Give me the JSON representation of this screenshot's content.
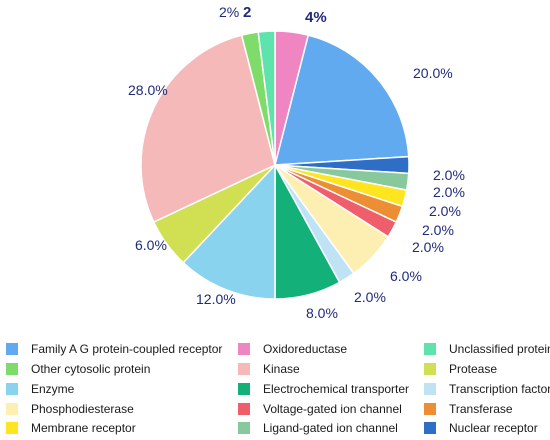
{
  "chart_data": {
    "type": "pie",
    "start": "12 o'clock, clockwise",
    "slices": [
      {
        "name": "Oxidoreductase",
        "value": 4,
        "label": "4%",
        "color": "#ef86c1",
        "bold": true
      },
      {
        "name": "Family A G protein-coupled receptor",
        "value": 20,
        "label": "20.0%",
        "color": "#62aaf0"
      },
      {
        "name": "Nuclear receptor",
        "value": 2,
        "label": "2.0%",
        "color": "#2f6ec6"
      },
      {
        "name": "Ligand-gated ion channel",
        "value": 2,
        "label": "2.0%",
        "color": "#87c99c"
      },
      {
        "name": "Membrane receptor",
        "value": 2,
        "label": "2.0%",
        "color": "#ffe51f"
      },
      {
        "name": "Transferase",
        "value": 2,
        "label": "2.0%",
        "color": "#ec8e33"
      },
      {
        "name": "Voltage-gated ion channel",
        "value": 2,
        "label": "2.0%",
        "color": "#ef5f6b"
      },
      {
        "name": "Phosphodiesterase",
        "value": 6,
        "label": "6.0%",
        "color": "#fdeeb1"
      },
      {
        "name": "Transcription factor",
        "value": 2,
        "label": "2.0%",
        "color": "#bfe3f5"
      },
      {
        "name": "Electrochemical transporter",
        "value": 8,
        "label": "8.0%",
        "color": "#13b07a"
      },
      {
        "name": "Enzyme",
        "value": 12,
        "label": "12.0%",
        "color": "#8ad3ee"
      },
      {
        "name": "Protease",
        "value": 6,
        "label": "6.0%",
        "color": "#d0e052"
      },
      {
        "name": "Kinase",
        "value": 28,
        "label": "28.0%",
        "color": "#f5b9b9"
      },
      {
        "name": "Other cytosolic protein",
        "value": 2,
        "label": "2%",
        "color": "#7fdc6a"
      },
      {
        "name": "Unclassified protein",
        "value": 2,
        "label": "2",
        "color": "#5ee3ac",
        "bold": true
      }
    ]
  },
  "legend": [
    {
      "label": "Family A G protein-coupled receptor",
      "color": "#62aaf0"
    },
    {
      "label": "Oxidoreductase",
      "color": "#ef86c1"
    },
    {
      "label": "Unclassified protein",
      "color": "#5ee3ac"
    },
    {
      "label": "Other cytosolic protein",
      "color": "#7fdc6a"
    },
    {
      "label": "Kinase",
      "color": "#f5b9b9"
    },
    {
      "label": "Protease",
      "color": "#d0e052"
    },
    {
      "label": "Enzyme",
      "color": "#8ad3ee"
    },
    {
      "label": "Electrochemical transporter",
      "color": "#13b07a"
    },
    {
      "label": "Transcription factor",
      "color": "#bfe3f5"
    },
    {
      "label": "Phosphodiesterase",
      "color": "#fdeeb1"
    },
    {
      "label": "Voltage-gated ion channel",
      "color": "#ef5f6b"
    },
    {
      "label": "Transferase",
      "color": "#ec8e33"
    },
    {
      "label": "Membrane receptor",
      "color": "#ffe51f"
    },
    {
      "label": "Ligand-gated ion channel",
      "color": "#87c99c"
    },
    {
      "label": "Nuclear receptor",
      "color": "#2f6ec6"
    }
  ]
}
